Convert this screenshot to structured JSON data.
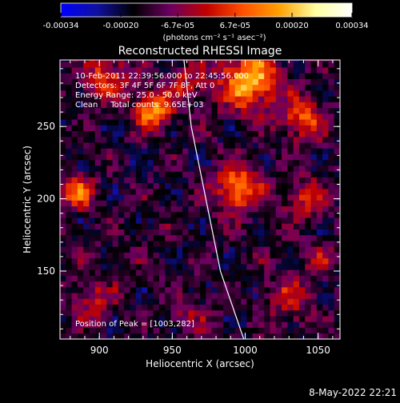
{
  "chart_data": {
    "type": "heatmap",
    "title": "Reconstructed RHESSI Image",
    "xlabel": "Heliocentric X (arcsec)",
    "ylabel": "Heliocentric Y (arcsec)",
    "xlim": [
      873,
      1065
    ],
    "ylim": [
      103,
      296
    ],
    "x_ticks": [
      900,
      950,
      1000,
      1050
    ],
    "y_ticks": [
      150,
      200,
      250
    ],
    "x_tick_labels": [
      "900",
      "950",
      "1000",
      "1050"
    ],
    "y_tick_labels": [
      "150",
      "200",
      "250"
    ],
    "colorbar": {
      "range": [
        -0.00034,
        0.00034
      ],
      "ticks": [
        -0.00034,
        -0.0002,
        -6.7e-05,
        6.7e-05,
        0.0002,
        0.00034
      ],
      "tick_labels": [
        "-0.00034",
        "-0.00020",
        "-6.7e-05",
        "6.7e-05",
        "0.00020",
        "0.00034"
      ],
      "unit_label": "(photons cm⁻² s⁻¹ asec⁻²)",
      "colors": [
        "#0000ff",
        "#1010a0",
        "#000000",
        "#6a0060",
        "#c00000",
        "#ff5000",
        "#ffa000",
        "#ffffa0",
        "#ffffff"
      ]
    },
    "annotations": [
      "10-Feb-2011 22:39:56.000 to 22:45:56.000",
      "Detectors: 3F 4F 5F 6F 7F 8F, Att 0",
      "Energy Range: 25.0 - 50.0 keV",
      "Clean     Total counts: 9.65E+03"
    ],
    "peak_label": "Position of Peak = [1003,282]",
    "peak": [
      1003,
      282
    ],
    "limb": [
      [
        958,
        296
      ],
      [
        963,
        250
      ],
      [
        973,
        200
      ],
      [
        983,
        150
      ],
      [
        999,
        103
      ]
    ],
    "sources": [
      {
        "x": 1003,
        "y": 282,
        "peak": 0.00034,
        "sigma": 14
      },
      {
        "x": 937,
        "y": 262,
        "peak": 0.0003,
        "sigma": 9
      },
      {
        "x": 995,
        "y": 207,
        "peak": 0.00028,
        "sigma": 11
      },
      {
        "x": 1040,
        "y": 255,
        "peak": 0.00022,
        "sigma": 10
      },
      {
        "x": 885,
        "y": 205,
        "peak": 0.00024,
        "sigma": 8
      },
      {
        "x": 905,
        "y": 285,
        "peak": 0.0002,
        "sigma": 11
      },
      {
        "x": 1040,
        "y": 200,
        "peak": 0.00016,
        "sigma": 10
      },
      {
        "x": 895,
        "y": 130,
        "peak": 0.00014,
        "sigma": 10
      },
      {
        "x": 1030,
        "y": 130,
        "peak": 0.00012,
        "sigma": 12
      },
      {
        "x": 960,
        "y": 120,
        "peak": 0.0001,
        "sigma": 10
      },
      {
        "x": 1050,
        "y": 160,
        "peak": 0.0001,
        "sigma": 8
      },
      {
        "x": 960,
        "y": 280,
        "peak": 0.00014,
        "sigma": 9
      }
    ],
    "background_level": -0.00015,
    "grid": false
  },
  "timestamp": "8-May-2022 22:21"
}
